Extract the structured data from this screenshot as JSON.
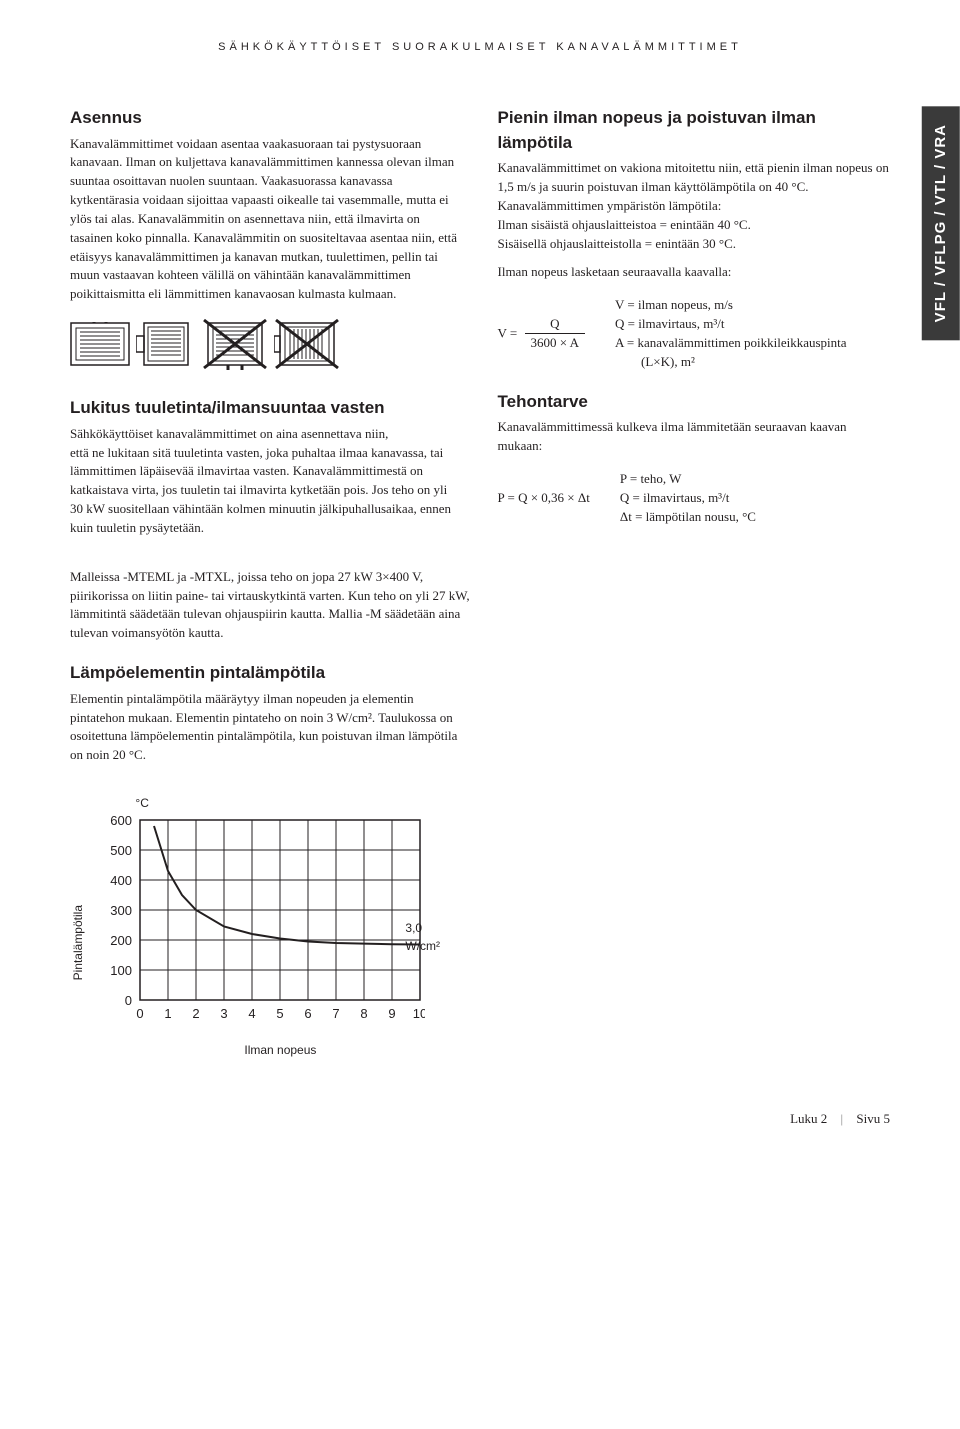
{
  "header": "SÄHKÖKÄYTTÖISET SUORAKULMAISET KANAVALÄMMITTIMET",
  "side_tab": "VFL / VFLPG / VTL / VRA",
  "left": {
    "h1": "Asennus",
    "p1": "Kanavalämmittimet voidaan asentaa vaakasuoraan tai pystysuoraan kanavaan. Ilman on kuljettava kanavalämmittimen kannessa olevan ilman suuntaa osoittavan nuolen suuntaan. Vaakasuorassa kanavassa kytkentärasia voidaan sijoittaa vapaasti oikealle tai vasemmalle, mutta ei ylös tai alas. Kanavalämmitin on asennettava niin, että ilmavirta on tasainen koko pinnalla. Kanavalämmitin on suositeltavaa asentaa niin, että etäisyys kanavalämmittimen ja kanavan mutkan, tuulettimen, pellin tai muun vastaavan kohteen välillä on vähintään kanavalämmittimen poikittaismitta eli lämmittimen kanavaosan kulmasta kulmaan.",
    "h2": "Lukitus tuuletinta/ilmansuuntaa vasten",
    "p2": "Sähkökäyttöiset kanavalämmittimet on aina asennettava niin,",
    "p3": "että ne lukitaan sitä tuuletinta vasten, joka puhaltaa ilmaa kanavassa, tai lämmittimen läpäisevää ilmavirtaa vasten. Kanavalämmittimestä on katkaistava virta, jos tuuletin tai ilmavirta kytketään pois. Jos teho on yli 30 kW suositellaan vähintään kolmen minuutin jälkipuhallusaikaa, ennen kuin tuuletin pysäytetään.",
    "p4": "Malleissa -MTEML ja -MTXL, joissa teho on jopa 27 kW 3×400 V, piirikorissa on liitin paine- tai virtauskytkintä varten. Kun teho on yli 27 kW, lämmitintä säädetään tulevan ohjauspiirin kautta. Mallia -M säädetään aina tulevan voimansyötön kautta.",
    "h3": "Lämpöelementin pintalämpötila",
    "p5": "Elementin pintalämpötila määräytyy ilman nopeuden ja elementin pintatehon mukaan. Elementin pintateho on noin 3 W/cm². Taulukossa on osoitettuna lämpöelementin pintalämpötila, kun poistuvan ilman lämpötila on noin 20 °C."
  },
  "right": {
    "h1": "Pienin ilman nopeus ja poistuvan ilman lämpötila",
    "p1": "Kanavalämmittimet on vakiona mitoitettu niin, että pienin ilman nopeus on 1,5 m/s ja suurin poistuvan ilman käyttölämpötila on 40 °C.",
    "p2": "Kanavalämmittimen ympäristön lämpötila:",
    "p3": "Ilman sisäistä ohjauslaitteistoa = enintään 40 °C.",
    "p4": "Sisäisellä ohjauslaitteistolla = enintään 30 °C.",
    "p5": "Ilman nopeus lasketaan seuraavalla kaavalla:",
    "formula1_lhs": "V =",
    "formula1_num": "Q",
    "formula1_den": "3600 × A",
    "legend1_1": "V = ilman nopeus, m/s",
    "legend1_2": "Q = ilmavirtaus, m³/t",
    "legend1_3": "A = kanavalämmittimen poikkileikkauspinta",
    "legend1_4": "(L×K), m²",
    "h2": "Tehontarve",
    "p6": "Kanavalämmittimessä kulkeva ilma lämmitetään seuraavan kaavan mukaan:",
    "formula2": "P = Q × 0,36 × Δt",
    "legend2_1": "P = teho, W",
    "legend2_2": "Q = ilmavirtaus, m³/t",
    "legend2_3": "Δt = lämpötilan nousu, °C"
  },
  "chart": {
    "type": "line",
    "unit": "°C",
    "y_label": "Pintalämpötila",
    "x_label": "Ilman nopeus",
    "annotation": "3,0 W/cm²",
    "x_ticks": [
      "0",
      "1",
      "2",
      "3",
      "4",
      "5",
      "6",
      "7",
      "8",
      "9",
      "10"
    ],
    "y_ticks": [
      "0",
      "100",
      "200",
      "300",
      "400",
      "500",
      "600"
    ],
    "xlim": [
      0,
      10
    ],
    "ylim": [
      0,
      600
    ],
    "grid_color": "#231f20",
    "line_color": "#231f20",
    "line_width": 2,
    "background": "#ffffff",
    "tick_fontsize": 13,
    "points": [
      [
        0.5,
        580
      ],
      [
        1,
        430
      ],
      [
        1.5,
        350
      ],
      [
        2,
        300
      ],
      [
        3,
        245
      ],
      [
        4,
        220
      ],
      [
        5,
        205
      ],
      [
        6,
        195
      ],
      [
        7,
        190
      ],
      [
        8,
        188
      ],
      [
        9,
        186
      ],
      [
        10,
        185
      ]
    ]
  },
  "footer": {
    "chapter": "Luku 2",
    "page": "Sivu 5"
  },
  "colors": {
    "text": "#231f20",
    "tab_bg": "#3a3a3a",
    "tab_text": "#ffffff"
  }
}
